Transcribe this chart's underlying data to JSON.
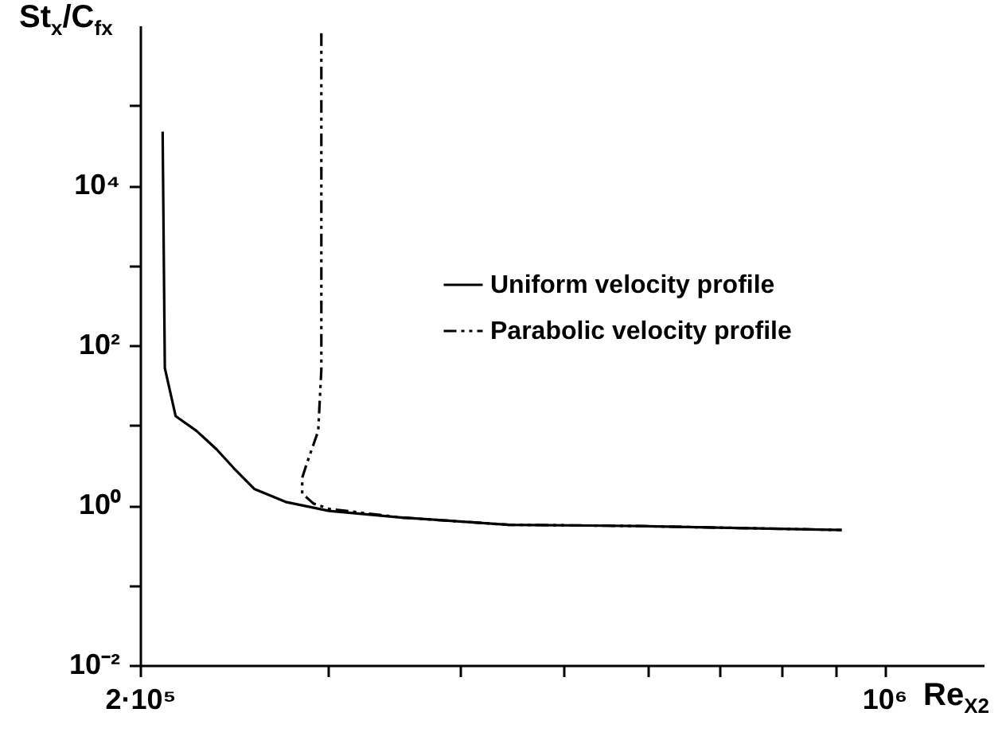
{
  "chart_data": {
    "type": "line",
    "xlabel": "Re$_{X2}$",
    "ylabel": "St$_{x}$/C$_{fx}$",
    "log": "xy",
    "legend": "right",
    "xlim": [
      200000,
      1240000
    ],
    "xticks": [
      {
        "value": 200000,
        "label": "2·10⁵"
      },
      {
        "value": 300000,
        "label": null
      },
      {
        "value": 400000,
        "label": null
      },
      {
        "value": 500000,
        "label": null
      },
      {
        "value": 600000,
        "label": null
      },
      {
        "value": 700000,
        "label": null
      },
      {
        "value": 800000,
        "label": null
      },
      {
        "value": 900000,
        "label": null
      },
      {
        "value": 1000000,
        "label": "10⁶"
      }
    ],
    "ylim": [
      0.01,
      1000000
    ],
    "yticks": [
      {
        "value": 0.01,
        "label": "10⁻²"
      },
      {
        "value": 0.1,
        "label": null
      },
      {
        "value": 1,
        "label": "10⁰"
      },
      {
        "value": 10,
        "label": null
      },
      {
        "value": 100,
        "label": "10²"
      },
      {
        "value": 1000,
        "label": null
      },
      {
        "value": 10000,
        "label": "10⁴"
      },
      {
        "value": 100000,
        "label": null
      }
    ],
    "series": [
      {
        "name": "Uniform velocity profile",
        "color": "#000000",
        "line_style": "solid",
        "x": [
          210000,
          211000,
          216000,
          226000,
          236000,
          245000,
          256000,
          274000,
          301000,
          353000,
          444000,
          585000,
          912000
        ],
        "values": [
          47000,
          52,
          13,
          8.5,
          5,
          2.9,
          1.6,
          1.1,
          0.85,
          0.7,
          0.57,
          0.55,
          0.49
        ]
      },
      {
        "name": "Parabolic velocity profile",
        "color": "#000000",
        "line_style": "dashed",
        "x": [
          296000,
          296000,
          294000,
          287000,
          284000,
          284000,
          291000,
          301000,
          353000,
          444000,
          585000,
          912000
        ],
        "values": [
          800000,
          50,
          8.5,
          3.4,
          2.2,
          1.4,
          1.05,
          0.9,
          0.7,
          0.57,
          0.55,
          0.49
        ]
      }
    ]
  }
}
